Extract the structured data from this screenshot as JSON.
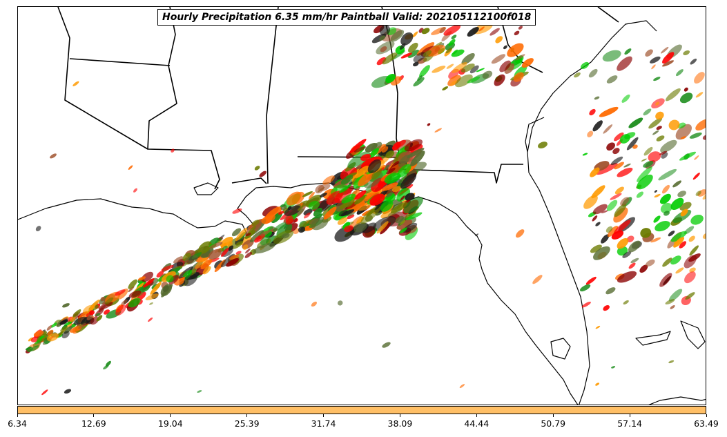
{
  "title": "Hourly Precipitation 6.35 mm/hr Paintball Valid: 202105112100f018",
  "colorbar": {
    "color": "#ffbf66",
    "tick_labels": [
      "6.34",
      "12.69",
      "19.04",
      "25.39",
      "31.74",
      "38.09",
      "44.44",
      "50.79",
      "57.14",
      "63.49"
    ]
  },
  "member_colors": [
    "#ff0000",
    "#ff6a00",
    "#ff9a00",
    "#8b0000",
    "#1a8c1a",
    "#00cc00",
    "#6b7b00",
    "#a0522d",
    "#1a1a1a",
    "#556b2f"
  ]
}
